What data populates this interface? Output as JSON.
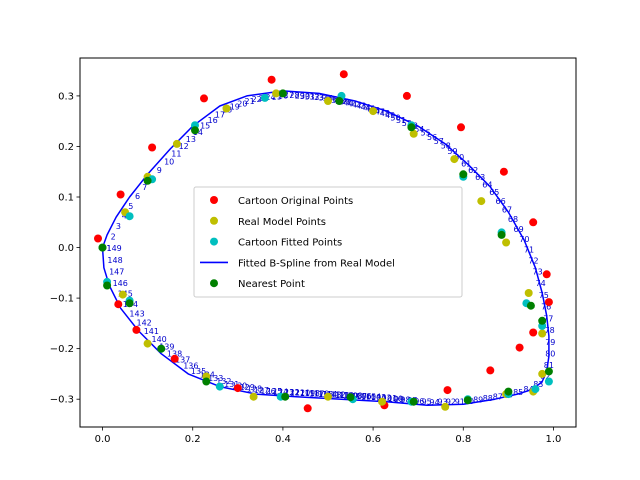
{
  "chart_data": {
    "type": "scatter",
    "xlim": [
      -0.05,
      1.05
    ],
    "ylim": [
      -0.355,
      0.375
    ],
    "grid": false,
    "legend_position": "center",
    "x_ticks": [
      {
        "value": 0.0,
        "label": "0.0"
      },
      {
        "value": 0.2,
        "label": "0.2"
      },
      {
        "value": 0.4,
        "label": "0.4"
      },
      {
        "value": 0.6,
        "label": "0.6"
      },
      {
        "value": 0.8,
        "label": "0.8"
      },
      {
        "value": 1.0,
        "label": "1.0"
      }
    ],
    "y_ticks": [
      {
        "value": -0.3,
        "label": "−0.3"
      },
      {
        "value": -0.2,
        "label": "−0.2"
      },
      {
        "value": -0.1,
        "label": "−0.1"
      },
      {
        "value": 0.0,
        "label": "0.0"
      },
      {
        "value": 0.1,
        "label": "0.1"
      },
      {
        "value": 0.2,
        "label": "0.2"
      },
      {
        "value": 0.3,
        "label": "0.3"
      }
    ],
    "series": [
      {
        "name": "Cartoon Original Points",
        "kind": "scatter",
        "color": "#ff0000",
        "x": [
          -0.01,
          0.04,
          0.11,
          0.225,
          0.375,
          0.535,
          0.675,
          0.795,
          0.89,
          0.955,
          0.985,
          0.99,
          0.955,
          0.925,
          0.86,
          0.765,
          0.625,
          0.455,
          0.3,
          0.16,
          0.075,
          0.035
        ],
        "y": [
          0.018,
          0.105,
          0.198,
          0.295,
          0.332,
          0.343,
          0.3,
          0.238,
          0.15,
          0.05,
          -0.053,
          -0.108,
          -0.168,
          -0.198,
          -0.243,
          -0.282,
          -0.312,
          -0.318,
          -0.278,
          -0.22,
          -0.163,
          -0.112
        ]
      },
      {
        "name": "Real Model Points",
        "kind": "scatter",
        "color": "#bfbf00",
        "x": [
          0.0,
          0.05,
          0.1,
          0.165,
          0.275,
          0.385,
          0.5,
          0.6,
          0.69,
          0.78,
          0.84,
          0.895,
          0.945,
          0.975,
          0.975,
          0.955,
          0.895,
          0.76,
          0.62,
          0.5,
          0.335,
          0.23,
          0.1,
          0.045
        ],
        "y": [
          0.0,
          0.07,
          0.14,
          0.205,
          0.275,
          0.305,
          0.29,
          0.27,
          0.225,
          0.175,
          0.092,
          0.01,
          -0.09,
          -0.17,
          -0.25,
          -0.285,
          -0.29,
          -0.315,
          -0.305,
          -0.295,
          -0.295,
          -0.255,
          -0.19,
          -0.093
        ]
      },
      {
        "name": "Cartoon Fitted Points",
        "kind": "scatter",
        "color": "#00bfbf",
        "x": [
          0.0,
          0.06,
          0.11,
          0.205,
          0.36,
          0.53,
          0.685,
          0.8,
          0.885,
          0.94,
          0.975,
          0.99,
          0.96,
          0.9,
          0.81,
          0.685,
          0.555,
          0.395,
          0.26,
          0.13,
          0.06,
          0.01
        ],
        "y": [
          0.0,
          0.062,
          0.135,
          0.242,
          0.296,
          0.3,
          0.242,
          0.14,
          0.03,
          -0.11,
          -0.155,
          -0.265,
          -0.28,
          -0.29,
          -0.3,
          -0.305,
          -0.3,
          -0.295,
          -0.275,
          -0.2,
          -0.105,
          -0.068
        ]
      },
      {
        "name": "Fitted B-Spline from Real Model",
        "kind": "line",
        "color": "#0000ff",
        "x": [
          0.0,
          0.01,
          0.03,
          0.06,
          0.1,
          0.15,
          0.2,
          0.26,
          0.32,
          0.4,
          0.48,
          0.56,
          0.63,
          0.7,
          0.76,
          0.81,
          0.86,
          0.9,
          0.935,
          0.96,
          0.975,
          0.985,
          0.99,
          0.99,
          0.985,
          0.975,
          0.955,
          0.92,
          0.87,
          0.8,
          0.72,
          0.63,
          0.53,
          0.43,
          0.34,
          0.26,
          0.19,
          0.13,
          0.08,
          0.04,
          0.015,
          0.003,
          0.0
        ],
        "y": [
          0.0,
          0.025,
          0.06,
          0.1,
          0.145,
          0.195,
          0.24,
          0.28,
          0.3,
          0.31,
          0.305,
          0.29,
          0.27,
          0.24,
          0.205,
          0.165,
          0.12,
          0.07,
          0.015,
          -0.04,
          -0.09,
          -0.135,
          -0.175,
          -0.215,
          -0.245,
          -0.265,
          -0.28,
          -0.29,
          -0.3,
          -0.31,
          -0.312,
          -0.305,
          -0.3,
          -0.295,
          -0.29,
          -0.275,
          -0.25,
          -0.21,
          -0.165,
          -0.12,
          -0.075,
          -0.04,
          0.0
        ]
      },
      {
        "name": "Nearest Point",
        "kind": "scatter",
        "color": "#008000",
        "x": [
          0.0,
          0.1,
          0.205,
          0.4,
          0.525,
          0.685,
          0.8,
          0.885,
          0.95,
          0.975,
          0.99,
          0.9,
          0.81,
          0.69,
          0.55,
          0.405,
          0.23,
          0.13,
          0.06,
          0.01
        ],
        "y": [
          0.0,
          0.132,
          0.232,
          0.305,
          0.29,
          0.238,
          0.145,
          0.025,
          -0.115,
          -0.145,
          -0.245,
          -0.285,
          -0.302,
          -0.305,
          -0.296,
          -0.295,
          -0.265,
          -0.2,
          -0.11,
          -0.075
        ]
      }
    ],
    "annotations": {
      "labels": [
        "1",
        "2",
        "3",
        "4",
        "5",
        "6",
        "7",
        "8",
        "9",
        "10",
        "11",
        "12",
        "13",
        "14",
        "15",
        "16",
        "17",
        "18",
        "19",
        "20",
        "21",
        "22",
        "23",
        "24",
        "25",
        "26",
        "27",
        "28",
        "29",
        "30",
        "31",
        "32",
        "33",
        "34",
        "35",
        "36",
        "37",
        "38",
        "39",
        "40",
        "41",
        "42",
        "43",
        "44",
        "45",
        "46",
        "47",
        "48",
        "49",
        "50",
        "51",
        "52",
        "53",
        "54",
        "55",
        "56",
        "57",
        "58",
        "59",
        "60",
        "61",
        "62",
        "63",
        "64",
        "65",
        "66",
        "67",
        "68",
        "69",
        "70",
        "71",
        "72",
        "73",
        "74",
        "75",
        "76",
        "77",
        "78",
        "79",
        "80",
        "81",
        "82",
        "83",
        "84",
        "85",
        "86",
        "87",
        "88",
        "89",
        "90",
        "91",
        "92",
        "93",
        "94",
        "95",
        "96",
        "97",
        "98",
        "99",
        "100",
        "101",
        "102",
        "103",
        "104",
        "105",
        "106",
        "107",
        "108",
        "109",
        "110",
        "111",
        "112",
        "113",
        "114",
        "115",
        "116",
        "117",
        "118",
        "119",
        "120",
        "121",
        "122",
        "123",
        "124",
        "125",
        "126",
        "127",
        "128",
        "129",
        "130",
        "131",
        "132",
        "133",
        "134",
        "135",
        "136",
        "137",
        "138",
        "139",
        "140",
        "141",
        "142",
        "143",
        "144",
        "145",
        "146",
        "147",
        "148",
        "149"
      ]
    },
    "legend": [
      {
        "label": "Cartoon Original Points",
        "marker": "dot",
        "color": "#ff0000"
      },
      {
        "label": "Real Model Points",
        "marker": "dot",
        "color": "#bfbf00"
      },
      {
        "label": "Cartoon Fitted Points",
        "marker": "dot",
        "color": "#00bfbf"
      },
      {
        "label": "Fitted B-Spline from Real Model",
        "marker": "line",
        "color": "#0000ff"
      },
      {
        "label": "Nearest Point",
        "marker": "dot",
        "color": "#008000"
      }
    ]
  }
}
